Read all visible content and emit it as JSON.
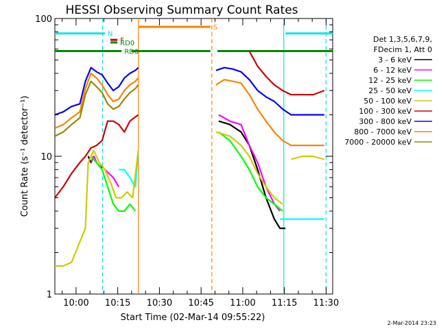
{
  "chart_data": {
    "type": "line",
    "title": "HESSI Observing Summary Count Rates",
    "xlabel": "Start Time (02-Mar-14 09:55:22)",
    "ylabel": "Count Rate (s⁻¹ detector⁻¹)",
    "yscale": "log",
    "ylim": [
      1,
      100
    ],
    "xlim_minutes": [
      -3,
      97
    ],
    "x_ticks": [
      "10:00",
      "10:15",
      "10:30",
      "10:45",
      "11:00",
      "11:15",
      "11:30"
    ],
    "y_ticks": [
      "1",
      "10",
      "100"
    ],
    "footer_date": "2-Mar-2014 23:23",
    "legend": {
      "header": [
        "Det 1,3,5,6,7,9,",
        "FDecim 1, Att 0"
      ],
      "entries": [
        {
          "label": "3 - 6 keV",
          "color": "#000000"
        },
        {
          "label": "6 - 12 keV",
          "color": "#ff00ff"
        },
        {
          "label": "12 - 25 keV",
          "color": "#00ff00"
        },
        {
          "label": "25 - 50 keV",
          "color": "#00ffff"
        },
        {
          "label": "50 - 100 keV",
          "color": "#cccc00"
        },
        {
          "label": "100 - 300 keV",
          "color": "#cc0000"
        },
        {
          "label": "300 - 800 keV",
          "color": "#0000ff"
        },
        {
          "label": "800 - 7000 keV",
          "color": "#ff8000"
        },
        {
          "label": "7000 - 20000 keV",
          "color": "#998800"
        }
      ]
    },
    "flags": [
      {
        "label": "N",
        "color": "#00e5e5",
        "y": 78,
        "segments": [
          [
            -3,
            15
          ],
          [
            80,
            97
          ]
        ]
      },
      {
        "label": "S",
        "color": "#ff8000",
        "y": 87,
        "segments": [
          [
            27,
            53
          ]
        ]
      },
      {
        "label": "F",
        "color": "#cc0000",
        "y": 70,
        "segments": [
          [
            17,
            19.5
          ]
        ]
      },
      {
        "label": "RD0",
        "color": "#008800",
        "y": 67,
        "segments": [
          [
            17,
            19.5
          ]
        ]
      },
      {
        "label": "RD6",
        "color": "#008800",
        "y": 58,
        "segments": [
          [
            -3,
            21
          ],
          [
            24.5,
            53
          ],
          [
            55.5,
            97
          ]
        ]
      }
    ],
    "vlines": [
      {
        "t": 14.2,
        "color": "#00e5e5",
        "style": "dashed"
      },
      {
        "t": 27.1,
        "color": "#ff8000",
        "style": "solid"
      },
      {
        "t": 53.5,
        "color": "#ff8000",
        "style": "dashed"
      },
      {
        "t": 79.4,
        "color": "#00e5e5",
        "style": "solid"
      },
      {
        "t": 94.6,
        "color": "#00e5e5",
        "style": "dashed"
      }
    ],
    "series": [
      {
        "name": "3 - 6 keV",
        "color": "#000000",
        "segments": [
          [
            [
              9,
              10
            ],
            [
              10,
              9
            ],
            [
              11,
              10
            ],
            [
              12,
              9
            ],
            [
              13,
              8.5
            ],
            [
              14,
              8.2
            ]
          ],
          [
            [
              56,
              18
            ],
            [
              60,
              17
            ],
            [
              64,
              15
            ],
            [
              67,
              12
            ],
            [
              70,
              8
            ],
            [
              73,
              5
            ],
            [
              76,
              3.5
            ],
            [
              78,
              3
            ],
            [
              80,
              3
            ]
          ]
        ]
      },
      {
        "name": "6 - 12 keV",
        "color": "#ff00ff",
        "segments": [
          [
            [
              10,
              9
            ],
            [
              11,
              10
            ],
            [
              12,
              9
            ],
            [
              13,
              8.5
            ],
            [
              14,
              8.5
            ],
            [
              15,
              8
            ],
            [
              18,
              7
            ],
            [
              20,
              6
            ]
          ],
          [
            [
              56,
              20
            ],
            [
              60,
              18
            ],
            [
              64,
              17
            ],
            [
              67,
              12
            ],
            [
              70,
              9
            ],
            [
              73,
              6
            ],
            [
              76,
              4.5
            ],
            [
              78,
              4
            ]
          ]
        ]
      },
      {
        "name": "12 - 25 keV",
        "color": "#00ff00",
        "segments": [
          [
            [
              10,
              10
            ],
            [
              12,
              9
            ],
            [
              14,
              8
            ],
            [
              16,
              6
            ],
            [
              18,
              4.5
            ],
            [
              20,
              4
            ],
            [
              22,
              4
            ],
            [
              24,
              4.5
            ],
            [
              26,
              4
            ]
          ],
          [
            [
              56,
              15
            ],
            [
              60,
              13
            ],
            [
              64,
              10
            ],
            [
              67,
              8
            ],
            [
              70,
              6
            ],
            [
              73,
              5
            ],
            [
              76,
              4.5
            ],
            [
              79,
              4
            ]
          ]
        ]
      },
      {
        "name": "25 - 50 keV",
        "color": "#00ffff",
        "segments": [
          [
            [
              20,
              8
            ],
            [
              22,
              8
            ],
            [
              24,
              7
            ],
            [
              26,
              6
            ],
            [
              27,
              11
            ]
          ],
          [
            [
              78,
              3.5
            ],
            [
              80,
              3.5
            ],
            [
              85,
              3.5
            ],
            [
              90,
              3.5
            ],
            [
              94,
              3.5
            ]
          ]
        ]
      },
      {
        "name": "50 - 100 keV",
        "color": "#cccc00",
        "segments": [
          [
            [
              -3,
              1.6
            ],
            [
              0,
              1.6
            ],
            [
              3,
              1.7
            ],
            [
              6,
              2.4
            ],
            [
              8,
              3
            ],
            [
              9,
              9
            ],
            [
              11,
              11
            ],
            [
              13,
              9
            ],
            [
              15,
              8
            ],
            [
              17,
              6.5
            ],
            [
              19,
              5
            ],
            [
              21,
              5
            ],
            [
              23,
              5.5
            ],
            [
              25,
              5
            ],
            [
              27,
              11
            ]
          ],
          [
            [
              55,
              15
            ],
            [
              60,
              14
            ],
            [
              64,
              12
            ],
            [
              67,
              10
            ],
            [
              70,
              7.5
            ],
            [
              73,
              6
            ],
            [
              76,
              5
            ],
            [
              79,
              4.5
            ]
          ],
          [
            [
              82,
              9.5
            ],
            [
              86,
              10
            ],
            [
              90,
              10
            ],
            [
              94,
              9.5
            ]
          ]
        ]
      },
      {
        "name": "100 - 300 keV",
        "color": "#cc0000",
        "segments": [
          [
            [
              -3,
              5
            ],
            [
              0,
              6
            ],
            [
              3,
              7.5
            ],
            [
              6,
              9
            ],
            [
              8,
              10
            ],
            [
              10,
              11.5
            ],
            [
              12,
              12
            ],
            [
              14,
              13
            ],
            [
              16,
              18
            ],
            [
              18,
              18
            ],
            [
              20,
              17
            ],
            [
              22,
              15
            ],
            [
              24,
              18
            ],
            [
              27,
              20
            ]
          ],
          [
            [
              67,
              58
            ],
            [
              70,
              45
            ],
            [
              73,
              38
            ],
            [
              76,
              33
            ],
            [
              79,
              30
            ],
            [
              82,
              28
            ],
            [
              86,
              28
            ],
            [
              90,
              28
            ],
            [
              94,
              30
            ]
          ]
        ]
      },
      {
        "name": "300 - 800 keV",
        "color": "#0000ff",
        "segments": [
          [
            [
              -3,
              20
            ],
            [
              0,
              21
            ],
            [
              3,
              23
            ],
            [
              6,
              24
            ],
            [
              8,
              35
            ],
            [
              10,
              44
            ],
            [
              12,
              41
            ],
            [
              14,
              39
            ],
            [
              16,
              34
            ],
            [
              18,
              30
            ],
            [
              20,
              32
            ],
            [
              22,
              37
            ],
            [
              24,
              40
            ],
            [
              26,
              42
            ],
            [
              27,
              44
            ]
          ],
          [
            [
              55,
              42
            ],
            [
              58,
              44
            ],
            [
              61,
              43
            ],
            [
              64,
              41
            ],
            [
              67,
              36
            ],
            [
              70,
              30
            ],
            [
              73,
              27
            ],
            [
              76,
              25
            ],
            [
              79,
              22
            ],
            [
              82,
              20
            ],
            [
              86,
              20
            ],
            [
              90,
              20
            ],
            [
              94,
              20
            ]
          ]
        ]
      },
      {
        "name": "800 - 7000 keV",
        "color": "#ff8000",
        "segments": [
          [
            [
              -3,
              16
            ],
            [
              0,
              17
            ],
            [
              3,
              19
            ],
            [
              6,
              21
            ],
            [
              8,
              31
            ],
            [
              10,
              40
            ],
            [
              12,
              37
            ],
            [
              14,
              33
            ],
            [
              16,
              28
            ],
            [
              18,
              25
            ],
            [
              20,
              26
            ],
            [
              22,
              30
            ],
            [
              24,
              33
            ],
            [
              26,
              35
            ],
            [
              27,
              37
            ]
          ],
          [
            [
              55,
              33
            ],
            [
              58,
              36
            ],
            [
              61,
              35
            ],
            [
              64,
              34
            ],
            [
              67,
              28
            ],
            [
              70,
              22
            ],
            [
              73,
              18
            ],
            [
              76,
              15
            ],
            [
              79,
              13
            ],
            [
              82,
              12
            ],
            [
              86,
              12
            ],
            [
              90,
              12
            ],
            [
              94,
              12
            ]
          ]
        ]
      },
      {
        "name": "7000 - 20000 keV",
        "color": "#998800",
        "segments": [
          [
            [
              -3,
              14
            ],
            [
              0,
              15
            ],
            [
              3,
              17
            ],
            [
              6,
              19
            ],
            [
              8,
              28
            ],
            [
              10,
              35
            ],
            [
              12,
              32
            ],
            [
              14,
              29
            ],
            [
              16,
              24
            ],
            [
              18,
              22
            ],
            [
              20,
              23
            ],
            [
              22,
              26
            ],
            [
              24,
              29
            ],
            [
              26,
              31
            ],
            [
              27,
              33
            ]
          ]
        ]
      }
    ]
  }
}
